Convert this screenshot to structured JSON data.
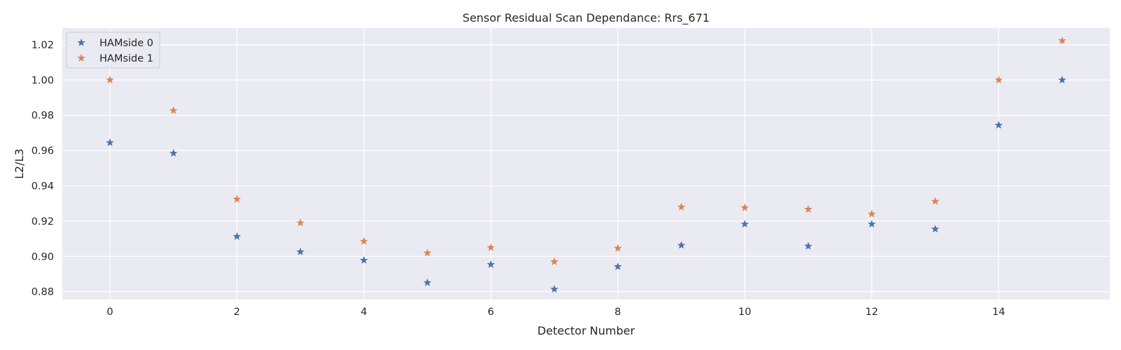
{
  "chart_data": {
    "type": "scatter",
    "title": "Sensor Residual Scan Dependance: Rrs_671",
    "xlabel": "Detector Number",
    "ylabel": "L2/L3",
    "xlim": [
      -0.75,
      15.75
    ],
    "ylim": [
      0.8755,
      1.0295
    ],
    "x_ticks": [
      0,
      2,
      4,
      6,
      8,
      10,
      12,
      14
    ],
    "y_ticks": [
      0.88,
      0.9,
      0.92,
      0.94,
      0.96,
      0.98,
      1.0,
      1.02
    ],
    "y_tick_labels": [
      "0.88",
      "0.90",
      "0.92",
      "0.94",
      "0.96",
      "0.98",
      "1.00",
      "1.02"
    ],
    "grid": true,
    "legend_position": "top-left",
    "marker": "star",
    "x": [
      0,
      1,
      2,
      3,
      4,
      5,
      6,
      7,
      8,
      9,
      10,
      11,
      12,
      13,
      14,
      15
    ],
    "series": [
      {
        "name": "HAMside 0",
        "color": "#4c72b0",
        "values": [
          0.9645,
          0.9585,
          0.9113,
          0.9026,
          0.8978,
          0.8851,
          0.8954,
          0.8814,
          0.8942,
          0.9063,
          0.9183,
          0.9058,
          0.9183,
          0.9155,
          0.9744,
          1.0
        ]
      },
      {
        "name": "HAMside 1",
        "color": "#dd8452",
        "values": [
          1.0,
          0.9827,
          0.9324,
          0.919,
          0.9085,
          0.9019,
          0.905,
          0.897,
          0.9046,
          0.928,
          0.9276,
          0.9267,
          0.924,
          0.9312,
          1.0,
          1.0223
        ]
      }
    ]
  }
}
